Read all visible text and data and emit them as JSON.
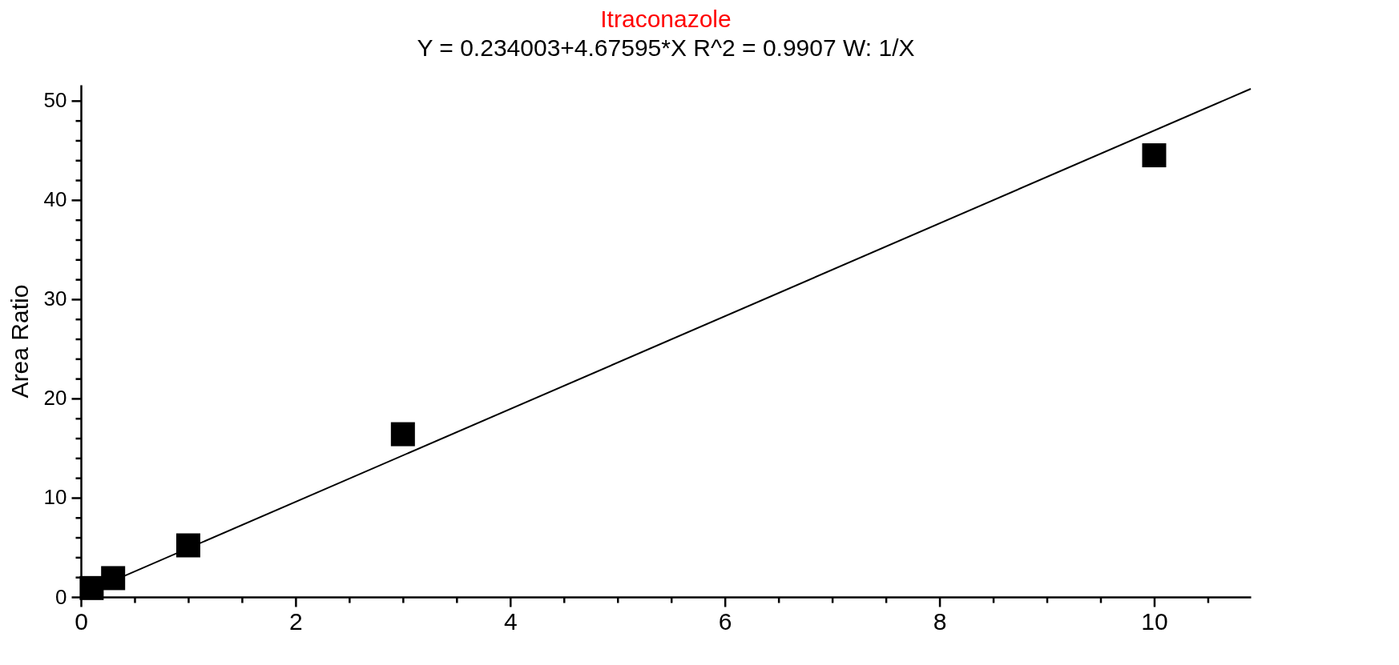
{
  "chart_data": {
    "type": "scatter",
    "title": "Itraconazole",
    "subtitle": "Y = 0.234003+4.67595*X   R^2 = 0.9907   W: 1/X",
    "ylabel": "Area Ratio",
    "x": [
      0.1,
      0.3,
      1,
      3,
      10
    ],
    "series": [
      {
        "color": "#000000",
        "marker": "square",
        "values": [
          0.9,
          1.9,
          5.2,
          16.4,
          44.5
        ]
      },
      {
        "type": "line",
        "color": "#000000",
        "marker": "none",
        "x": [
          0.1,
          10.9
        ],
        "values": [
          0.7,
          51.2
        ]
      }
    ],
    "xlim": [
      0,
      10.9
    ],
    "ylim": [
      0,
      51.6
    ],
    "xticks": [
      0,
      {
        "value": 0.5,
        "label": null
      },
      {
        "value": 1,
        "label": null
      },
      {
        "value": 1.5,
        "label": null
      },
      2,
      {
        "value": 2.5,
        "label": null
      },
      {
        "value": 3,
        "label": null
      },
      {
        "value": 3.5,
        "label": null
      },
      4,
      {
        "value": 4.5,
        "label": null
      },
      {
        "value": 5,
        "label": null
      },
      {
        "value": 5.5,
        "label": null
      },
      6,
      {
        "value": 6.5,
        "label": null
      },
      {
        "value": 7,
        "label": null
      },
      {
        "value": 7.5,
        "label": null
      },
      8,
      {
        "value": 8.5,
        "label": null
      },
      {
        "value": 9,
        "label": null
      },
      {
        "value": 9.5,
        "label": null
      },
      10,
      {
        "value": 10.5,
        "label": null
      }
    ],
    "yticks": [
      0,
      {
        "value": 2,
        "label": null
      },
      {
        "value": 4,
        "label": null
      },
      {
        "value": 6,
        "label": null
      },
      {
        "value": 8,
        "label": null
      },
      10,
      {
        "value": 12,
        "label": null
      },
      {
        "value": 14,
        "label": null
      },
      {
        "value": 16,
        "label": null
      },
      {
        "value": 18,
        "label": null
      },
      20,
      {
        "value": 22,
        "label": null
      },
      {
        "value": 24,
        "label": null
      },
      {
        "value": 26,
        "label": null
      },
      {
        "value": 28,
        "label": null
      },
      30,
      {
        "value": 32,
        "label": null
      },
      {
        "value": 34,
        "label": null
      },
      {
        "value": 36,
        "label": null
      },
      {
        "value": 38,
        "label": null
      },
      40,
      {
        "value": 42,
        "label": null
      },
      {
        "value": 44,
        "label": null
      },
      {
        "value": 46,
        "label": null
      },
      {
        "value": 48,
        "label": null
      },
      50
    ],
    "grid": false
  }
}
